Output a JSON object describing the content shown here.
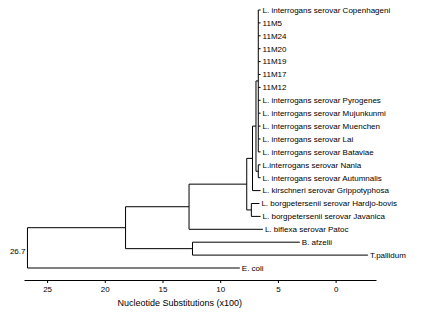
{
  "chart_data": {
    "type": "dendrogram",
    "x_label": "Nucleotide Substitutions (x100)",
    "xlim": [
      27,
      -3.5
    ],
    "xticks": [
      25,
      20,
      15,
      10,
      5,
      0
    ],
    "tree": {
      "height": 26.7,
      "children": [
        {
          "height": 18.2,
          "children": [
            {
              "height": 12.7,
              "children": [
                {
                  "height": 7.7,
                  "children": [
                    {
                      "height": 7.2,
                      "children": [
                        {
                          "height": 6.9,
                          "children": [
                            {
                              "height": 6.7,
                              "children": [
                                {
                                  "name": "L. interrogans serovar Copenhageni",
                                  "height": 6.5
                                },
                                {
                                  "name": "11M5",
                                  "height": 6.5
                                },
                                {
                                  "name": "11M24",
                                  "height": 6.5
                                },
                                {
                                  "name": "11M20",
                                  "height": 6.5
                                },
                                {
                                  "name": "11M19",
                                  "height": 6.5
                                },
                                {
                                  "name": "11M17",
                                  "height": 6.5
                                },
                                {
                                  "name": "11M12",
                                  "height": 6.5
                                },
                                {
                                  "name": "L. interrogans serovar Pyrogenes",
                                  "height": 6.5
                                },
                                {
                                  "name": "L. interrogans serovar Mujunkunmi",
                                  "height": 6.5
                                },
                                {
                                  "name": "L. interrogans serovar Muenchen",
                                  "height": 6.5
                                },
                                {
                                  "name": "L. interrogans serovar Lai",
                                  "height": 6.5
                                },
                                {
                                  "name": "L. interrogans serovar Bataviae",
                                  "height": 6.5
                                }
                              ]
                            },
                            {
                              "height": 6.7,
                              "children": [
                                {
                                  "name": "L.interrogans serovar Nanla",
                                  "height": 6.5
                                },
                                {
                                  "name": "L. interrogans serovar Autumnalis",
                                  "height": 6.5
                                }
                              ]
                            }
                          ]
                        },
                        {
                          "name": "L. kirschneri serovar Grippotyphosa",
                          "height": 6.5
                        }
                      ]
                    },
                    {
                      "height": 7.3,
                      "children": [
                        {
                          "name": "L. borgpetersenii serovar Hardjo-bovis",
                          "height": 6.6
                        },
                        {
                          "name": "L. borgpetersenii serovar Javanica",
                          "height": 6.5
                        }
                      ]
                    }
                  ]
                },
                {
                  "name": "L. biflexa serovar Patoc",
                  "height": 6.3
                }
              ]
            },
            {
              "height": 12.4,
              "children": [
                {
                  "name": "B. afzelii",
                  "height": 3.1
                },
                {
                  "name": "T.pallidum",
                  "height": -2.8
                }
              ]
            }
          ]
        },
        {
          "name": "E. coli",
          "height": 8.3
        }
      ]
    }
  }
}
